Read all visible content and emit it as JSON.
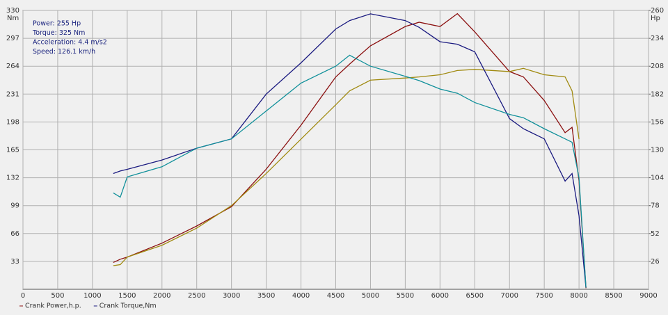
{
  "chart_data": {
    "type": "line",
    "y_label": "Nm",
    "y2_label": "Hp",
    "annotations": [
      "Power: 255 Hp",
      "Torque: 325 Nm",
      "Acceleration: 4.4 m/s2",
      "Speed: 126.1 km/h"
    ],
    "x": [
      1300,
      1400,
      1500,
      2000,
      2500,
      3000,
      3500,
      4000,
      4500,
      4700,
      5000,
      5500,
      5700,
      6000,
      6250,
      6500,
      7000,
      7200,
      7500,
      7800,
      7900,
      8000,
      8100
    ],
    "series": [
      {
        "name": "Crank Power,h.p.",
        "color": "#8b1010",
        "axis": "y2",
        "values": [
          25,
          28,
          30,
          43,
          59,
          77,
          112,
          153,
          198,
          210,
          227,
          245,
          249,
          245,
          257,
          240,
          203,
          198,
          176,
          146,
          151,
          101,
          1
        ]
      },
      {
        "color": "#a08a10",
        "axis": "y2",
        "values": [
          22,
          23,
          30,
          41,
          57,
          78,
          108,
          140,
          172,
          185,
          195,
          197,
          198,
          200,
          204,
          205,
          203,
          206,
          200,
          198,
          185,
          140,
          null
        ]
      },
      {
        "name": "Crank Torque,Nm",
        "color": "#1a1a80",
        "values": [
          137,
          140,
          142,
          153,
          167,
          178,
          231,
          268,
          308,
          318,
          326,
          318,
          310,
          293,
          290,
          281,
          202,
          190,
          178,
          128,
          137,
          87,
          2
        ]
      },
      {
        "color": "#10909a",
        "values": [
          114,
          109,
          133,
          145,
          167,
          178,
          211,
          244,
          264,
          277,
          264,
          252,
          247,
          237,
          232,
          221,
          207,
          203,
          190,
          178,
          174,
          132,
          2
        ]
      }
    ],
    "xlim": [
      0,
      9000
    ],
    "xticks": [
      0,
      500,
      1000,
      1500,
      2000,
      2500,
      3000,
      3500,
      4000,
      4500,
      5000,
      5500,
      6000,
      6500,
      7000,
      7500,
      8000,
      8500,
      9000
    ],
    "ylim": [
      0,
      330
    ],
    "yticks": [
      33,
      66,
      99,
      132,
      165,
      198,
      231,
      264,
      297,
      330
    ],
    "y2lim": [
      0,
      260
    ],
    "y2ticks": [
      26,
      52,
      78,
      104,
      130,
      156,
      182,
      208,
      234,
      260
    ],
    "grid": true
  }
}
